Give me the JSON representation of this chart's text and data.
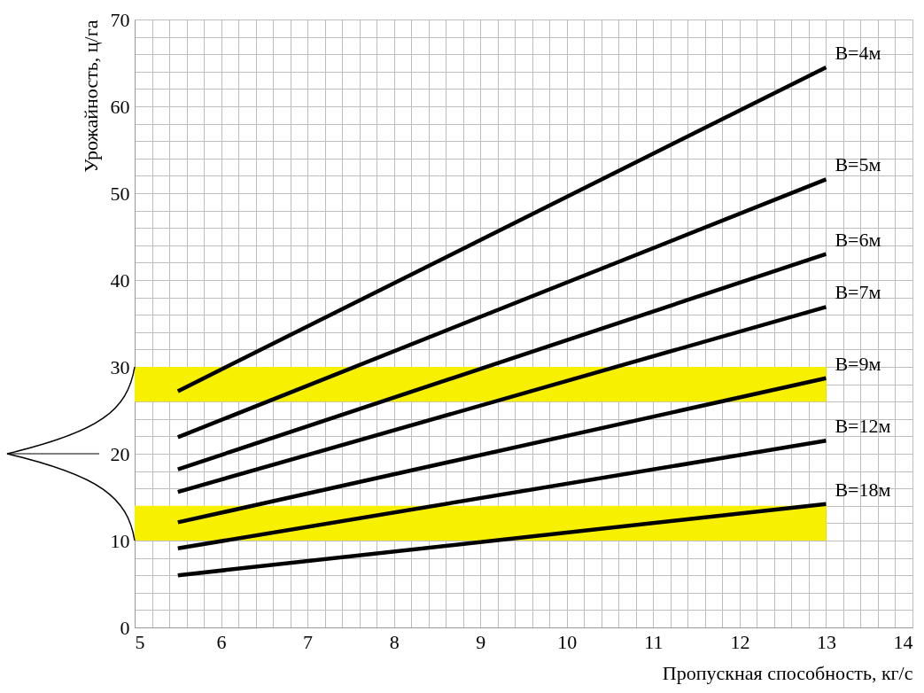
{
  "chart_data": {
    "type": "line",
    "xlabel": "Пропускная способность, кг/с",
    "ylabel": "Урожайность, ц/га",
    "x": [
      5.5,
      13
    ],
    "series": [
      {
        "name": "B=4м",
        "color": "#000000",
        "values": [
          27.2,
          64.5
        ]
      },
      {
        "name": "B=5м",
        "color": "#000000",
        "values": [
          21.9,
          51.6
        ]
      },
      {
        "name": "B=6м",
        "color": "#000000",
        "values": [
          18.2,
          43.0
        ]
      },
      {
        "name": "B=7м",
        "color": "#000000",
        "values": [
          15.6,
          36.9
        ]
      },
      {
        "name": "B=9м",
        "color": "#000000",
        "values": [
          12.1,
          28.7
        ]
      },
      {
        "name": "B=12м",
        "color": "#000000",
        "values": [
          9.1,
          21.5
        ]
      },
      {
        "name": "B=18м",
        "color": "#000000",
        "values": [
          6.0,
          14.2
        ]
      }
    ],
    "bands": [
      {
        "axis": "y",
        "from": 26,
        "to": 30,
        "color": "#f7f000"
      },
      {
        "axis": "y",
        "from": 10,
        "to": 14,
        "color": "#f7f000"
      }
    ],
    "xlim": [
      5,
      14
    ],
    "ylim": [
      0,
      70
    ],
    "xticks": [
      5,
      {
        "value": 5.2,
        "label": null
      },
      {
        "value": 5.4,
        "label": null
      },
      {
        "value": 5.6,
        "label": null
      },
      {
        "value": 5.8,
        "label": null
      },
      6,
      {
        "value": 6.2,
        "label": null
      },
      {
        "value": 6.4,
        "label": null
      },
      {
        "value": 6.6,
        "label": null
      },
      {
        "value": 6.8,
        "label": null
      },
      7,
      {
        "value": 7.2,
        "label": null
      },
      {
        "value": 7.4,
        "label": null
      },
      {
        "value": 7.6,
        "label": null
      },
      {
        "value": 7.8,
        "label": null
      },
      8,
      {
        "value": 8.2,
        "label": null
      },
      {
        "value": 8.4,
        "label": null
      },
      {
        "value": 8.6,
        "label": null
      },
      {
        "value": 8.8,
        "label": null
      },
      9,
      {
        "value": 9.2,
        "label": null
      },
      {
        "value": 9.4,
        "label": null
      },
      {
        "value": 9.6,
        "label": null
      },
      {
        "value": 9.8,
        "label": null
      },
      10,
      {
        "value": 10.2,
        "label": null
      },
      {
        "value": 10.4,
        "label": null
      },
      {
        "value": 10.6,
        "label": null
      },
      {
        "value": 10.8,
        "label": null
      },
      11,
      {
        "value": 11.2,
        "label": null
      },
      {
        "value": 11.4,
        "label": null
      },
      {
        "value": 11.6,
        "label": null
      },
      {
        "value": 11.8,
        "label": null
      },
      12,
      {
        "value": 12.2,
        "label": null
      },
      {
        "value": 12.4,
        "label": null
      },
      {
        "value": 12.6,
        "label": null
      },
      {
        "value": 12.8,
        "label": null
      },
      13,
      {
        "value": 13.2,
        "label": null
      },
      {
        "value": 13.4,
        "label": null
      },
      {
        "value": 13.6,
        "label": null
      },
      {
        "value": 13.8,
        "label": null
      },
      14
    ],
    "yticks": [
      0,
      {
        "value": 2,
        "label": null
      },
      {
        "value": 4,
        "label": null
      },
      {
        "value": 6,
        "label": null
      },
      {
        "value": 8,
        "label": null
      },
      10,
      {
        "value": 12,
        "label": null
      },
      {
        "value": 14,
        "label": null
      },
      {
        "value": 16,
        "label": null
      },
      {
        "value": 18,
        "label": null
      },
      20,
      {
        "value": 22,
        "label": null
      },
      {
        "value": 24,
        "label": null
      },
      {
        "value": 26,
        "label": null
      },
      {
        "value": 28,
        "label": null
      },
      30,
      {
        "value": 32,
        "label": null
      },
      {
        "value": 34,
        "label": null
      },
      {
        "value": 36,
        "label": null
      },
      {
        "value": 38,
        "label": null
      },
      40,
      {
        "value": 42,
        "label": null
      },
      {
        "value": 44,
        "label": null
      },
      {
        "value": 46,
        "label": null
      },
      {
        "value": 48,
        "label": null
      },
      50,
      {
        "value": 52,
        "label": null
      },
      {
        "value": 54,
        "label": null
      },
      {
        "value": 56,
        "label": null
      },
      {
        "value": 58,
        "label": null
      },
      60,
      {
        "value": 62,
        "label": null
      },
      {
        "value": 64,
        "label": null
      },
      {
        "value": 66,
        "label": null
      },
      {
        "value": 68,
        "label": null
      },
      70
    ],
    "grid": true,
    "line_style": "solid",
    "marker": "none"
  }
}
